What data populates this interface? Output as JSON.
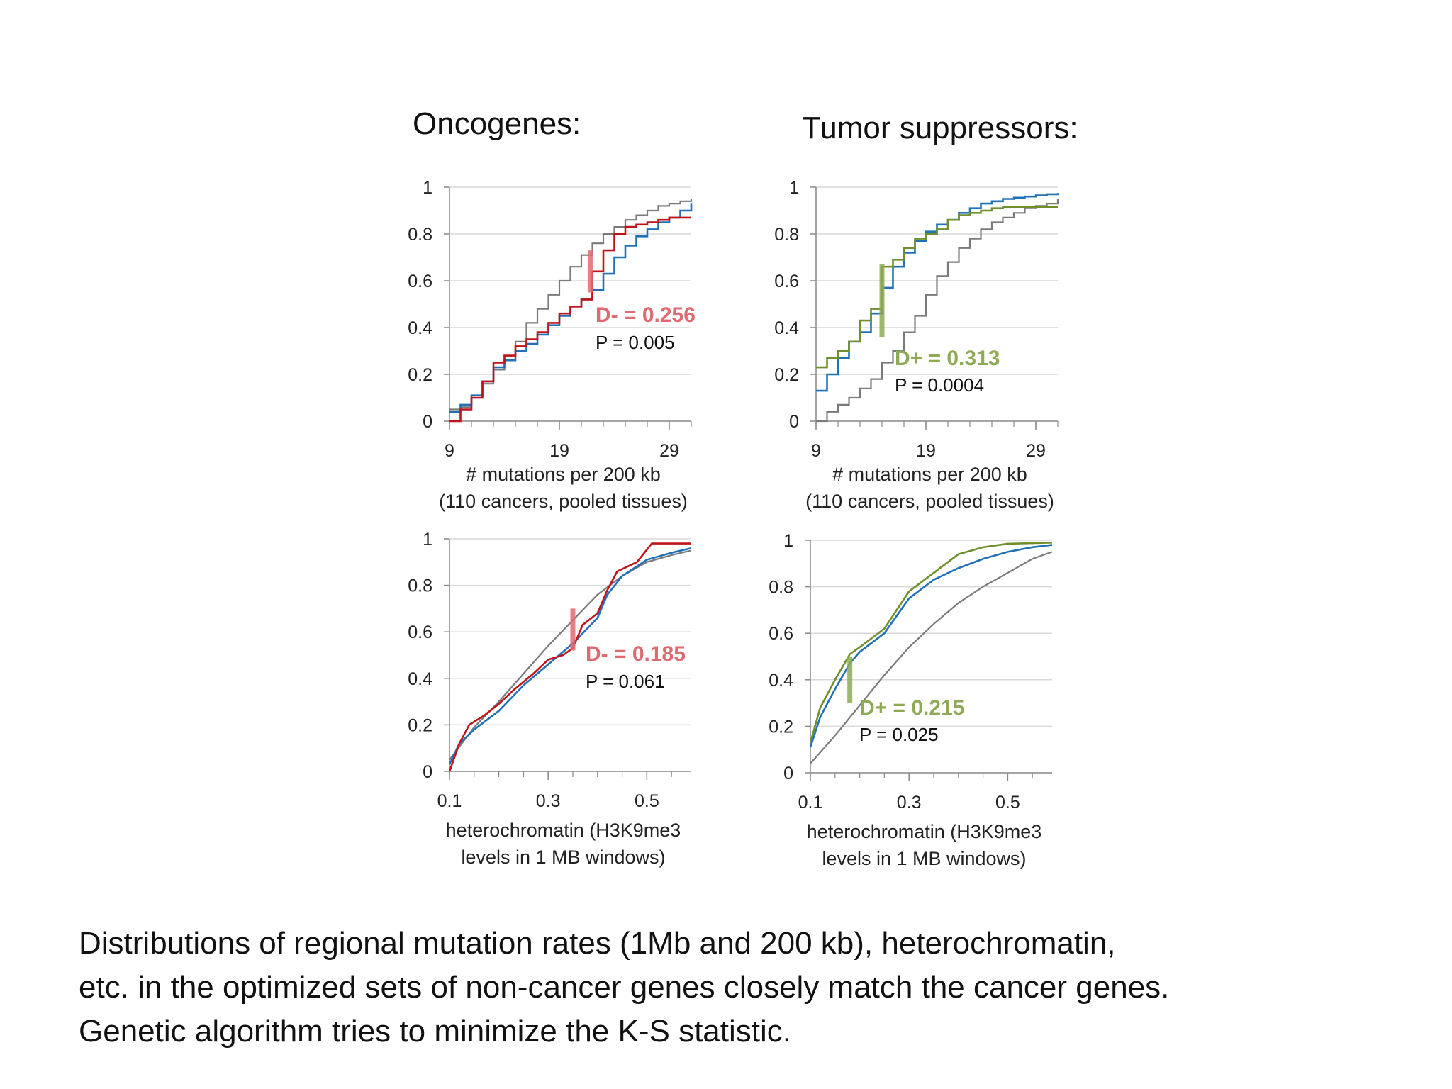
{
  "titles": {
    "oncogenes": "Oncogenes:",
    "tumor_suppressors": "Tumor suppressors:"
  },
  "caption": [
    "Distributions of regional mutation rates (1Mb and 200 kb), heterochromatin,",
    "etc. in the optimized sets of non-cancer genes closely match the cancer genes.",
    "Genetic algorithm tries to minimize the K-S statistic."
  ],
  "colors": {
    "cancer_onc": "#c0141c",
    "cancer_tum": "#6f8f2c",
    "optimized": "#1f72b8",
    "background": "#7a7a7a",
    "d_onc": "#e06a72",
    "d_tum": "#8faa55"
  },
  "chart_data": [
    {
      "id": "onc-mut",
      "type": "line",
      "step": true,
      "group": "Oncogenes:",
      "xlabel": [
        "# mutations per 200 kb",
        "(110 cancers, pooled tissues)"
      ],
      "ylabel": "",
      "xlim": [
        9,
        31
      ],
      "ylim": [
        0,
        1
      ],
      "xticks": [
        "9",
        "19",
        "29"
      ],
      "yticks": [
        "0",
        "0.2",
        "0.4",
        "0.6",
        "0.8",
        "1"
      ],
      "grid": true,
      "stat_label": "D- = 0.256",
      "p_label": "P = 0.005",
      "d_marker": {
        "x": 21.8,
        "y_low": 0.55,
        "y_high": 0.73
      },
      "series": [
        {
          "role": "background",
          "points": [
            [
              9,
              0.05
            ],
            [
              10,
              0.06
            ],
            [
              11,
              0.1
            ],
            [
              12,
              0.16
            ],
            [
              13,
              0.22
            ],
            [
              14,
              0.28
            ],
            [
              15,
              0.34
            ],
            [
              16,
              0.42
            ],
            [
              17,
              0.48
            ],
            [
              18,
              0.54
            ],
            [
              19,
              0.6
            ],
            [
              20,
              0.66
            ],
            [
              21,
              0.71
            ],
            [
              22,
              0.76
            ],
            [
              23,
              0.8
            ],
            [
              24,
              0.83
            ],
            [
              25,
              0.86
            ],
            [
              26,
              0.88
            ],
            [
              27,
              0.9
            ],
            [
              28,
              0.92
            ],
            [
              29,
              0.93
            ],
            [
              30,
              0.94
            ],
            [
              31,
              0.95
            ]
          ]
        },
        {
          "role": "optimized",
          "points": [
            [
              9,
              0.04
            ],
            [
              10,
              0.07
            ],
            [
              11,
              0.11
            ],
            [
              12,
              0.17
            ],
            [
              13,
              0.23
            ],
            [
              14,
              0.26
            ],
            [
              15,
              0.3
            ],
            [
              16,
              0.33
            ],
            [
              17,
              0.37
            ],
            [
              18,
              0.41
            ],
            [
              19,
              0.45
            ],
            [
              20,
              0.49
            ],
            [
              21,
              0.52
            ],
            [
              22,
              0.56
            ],
            [
              23,
              0.63
            ],
            [
              24,
              0.7
            ],
            [
              25,
              0.75
            ],
            [
              26,
              0.79
            ],
            [
              27,
              0.82
            ],
            [
              28,
              0.85
            ],
            [
              29,
              0.87
            ],
            [
              30,
              0.9
            ],
            [
              31,
              0.93
            ]
          ]
        },
        {
          "role": "cancer",
          "points": [
            [
              9,
              0.0
            ],
            [
              10,
              0.05
            ],
            [
              11,
              0.1
            ],
            [
              12,
              0.17
            ],
            [
              13,
              0.25
            ],
            [
              14,
              0.28
            ],
            [
              15,
              0.32
            ],
            [
              16,
              0.35
            ],
            [
              17,
              0.38
            ],
            [
              18,
              0.42
            ],
            [
              19,
              0.46
            ],
            [
              20,
              0.49
            ],
            [
              21,
              0.52
            ],
            [
              22,
              0.64
            ],
            [
              23,
              0.73
            ],
            [
              24,
              0.8
            ],
            [
              25,
              0.83
            ],
            [
              26,
              0.84
            ],
            [
              27,
              0.85
            ],
            [
              28,
              0.86
            ],
            [
              29,
              0.87
            ],
            [
              31,
              0.87
            ]
          ]
        }
      ]
    },
    {
      "id": "tum-mut",
      "type": "line",
      "step": true,
      "group": "Tumor suppressors:",
      "xlabel": [
        "# mutations per 200 kb",
        "(110 cancers, pooled tissues)"
      ],
      "ylabel": "",
      "xlim": [
        9,
        31
      ],
      "ylim": [
        0,
        1
      ],
      "xticks": [
        "9",
        "19",
        "29"
      ],
      "yticks": [
        "0",
        "0.2",
        "0.4",
        "0.6",
        "0.8",
        "1"
      ],
      "grid": true,
      "stat_label": "D+ = 0.313",
      "p_label": "P = 0.0004",
      "d_marker": {
        "x": 15.0,
        "y_low": 0.36,
        "y_high": 0.67
      },
      "series": [
        {
          "role": "background",
          "points": [
            [
              9,
              0.0
            ],
            [
              10,
              0.04
            ],
            [
              11,
              0.07
            ],
            [
              12,
              0.1
            ],
            [
              13,
              0.14
            ],
            [
              14,
              0.18
            ],
            [
              15,
              0.25
            ],
            [
              16,
              0.3
            ],
            [
              17,
              0.38
            ],
            [
              18,
              0.45
            ],
            [
              19,
              0.54
            ],
            [
              20,
              0.62
            ],
            [
              21,
              0.68
            ],
            [
              22,
              0.74
            ],
            [
              23,
              0.78
            ],
            [
              24,
              0.82
            ],
            [
              25,
              0.85
            ],
            [
              26,
              0.87
            ],
            [
              27,
              0.89
            ],
            [
              28,
              0.91
            ],
            [
              29,
              0.92
            ],
            [
              30,
              0.93
            ],
            [
              31,
              0.95
            ]
          ]
        },
        {
          "role": "optimized",
          "points": [
            [
              9,
              0.13
            ],
            [
              10,
              0.2
            ],
            [
              11,
              0.27
            ],
            [
              12,
              0.34
            ],
            [
              13,
              0.38
            ],
            [
              14,
              0.46
            ],
            [
              15,
              0.57
            ],
            [
              16,
              0.66
            ],
            [
              17,
              0.72
            ],
            [
              18,
              0.77
            ],
            [
              19,
              0.81
            ],
            [
              20,
              0.84
            ],
            [
              21,
              0.86
            ],
            [
              22,
              0.89
            ],
            [
              23,
              0.91
            ],
            [
              24,
              0.93
            ],
            [
              25,
              0.94
            ],
            [
              26,
              0.95
            ],
            [
              27,
              0.955
            ],
            [
              28,
              0.96
            ],
            [
              29,
              0.965
            ],
            [
              30,
              0.97
            ],
            [
              31,
              0.975
            ]
          ]
        },
        {
          "role": "cancer",
          "points": [
            [
              9,
              0.23
            ],
            [
              10,
              0.27
            ],
            [
              11,
              0.3
            ],
            [
              12,
              0.34
            ],
            [
              13,
              0.43
            ],
            [
              14,
              0.48
            ],
            [
              15,
              0.66
            ],
            [
              16,
              0.69
            ],
            [
              17,
              0.74
            ],
            [
              18,
              0.78
            ],
            [
              19,
              0.8
            ],
            [
              20,
              0.82
            ],
            [
              21,
              0.86
            ],
            [
              22,
              0.88
            ],
            [
              23,
              0.89
            ],
            [
              24,
              0.9
            ],
            [
              25,
              0.91
            ],
            [
              26,
              0.915
            ],
            [
              27,
              0.915
            ],
            [
              31,
              0.915
            ]
          ]
        }
      ]
    },
    {
      "id": "onc-het",
      "type": "line",
      "step": false,
      "group": "Oncogenes:",
      "xlabel": [
        "heterochromatin (H3K9me3",
        "levels in 1 MB windows)"
      ],
      "ylabel": "",
      "xlim": [
        0.1,
        0.59
      ],
      "ylim": [
        0,
        1
      ],
      "xticks": [
        "0.1",
        "0.3",
        "0.5"
      ],
      "yticks": [
        "0",
        "0.2",
        "0.4",
        "0.6",
        "0.8",
        "1"
      ],
      "grid": true,
      "stat_label": "D- = 0.185",
      "p_label": "P = 0.061",
      "d_marker": {
        "x": 0.35,
        "y_low": 0.52,
        "y_high": 0.7
      },
      "series": [
        {
          "role": "background",
          "points": [
            [
              0.1,
              0.05
            ],
            [
              0.15,
              0.19
            ],
            [
              0.2,
              0.3
            ],
            [
              0.25,
              0.42
            ],
            [
              0.3,
              0.54
            ],
            [
              0.35,
              0.65
            ],
            [
              0.4,
              0.76
            ],
            [
              0.45,
              0.84
            ],
            [
              0.5,
              0.9
            ],
            [
              0.55,
              0.93
            ],
            [
              0.59,
              0.95
            ]
          ]
        },
        {
          "role": "optimized",
          "points": [
            [
              0.1,
              0.03
            ],
            [
              0.12,
              0.12
            ],
            [
              0.15,
              0.18
            ],
            [
              0.2,
              0.26
            ],
            [
              0.25,
              0.37
            ],
            [
              0.3,
              0.46
            ],
            [
              0.35,
              0.55
            ],
            [
              0.4,
              0.66
            ],
            [
              0.42,
              0.76
            ],
            [
              0.45,
              0.84
            ],
            [
              0.5,
              0.91
            ],
            [
              0.55,
              0.94
            ],
            [
              0.59,
              0.96
            ]
          ]
        },
        {
          "role": "cancer",
          "points": [
            [
              0.1,
              0.0
            ],
            [
              0.12,
              0.12
            ],
            [
              0.14,
              0.2
            ],
            [
              0.17,
              0.24
            ],
            [
              0.2,
              0.29
            ],
            [
              0.23,
              0.35
            ],
            [
              0.27,
              0.42
            ],
            [
              0.3,
              0.48
            ],
            [
              0.33,
              0.5
            ],
            [
              0.35,
              0.53
            ],
            [
              0.37,
              0.63
            ],
            [
              0.4,
              0.68
            ],
            [
              0.42,
              0.78
            ],
            [
              0.44,
              0.86
            ],
            [
              0.48,
              0.9
            ],
            [
              0.51,
              0.98
            ],
            [
              0.59,
              0.98
            ]
          ]
        }
      ]
    },
    {
      "id": "tum-het",
      "type": "line",
      "step": false,
      "group": "Tumor suppressors:",
      "xlabel": [
        "heterochromatin (H3K9me3",
        "levels in 1 MB windows)"
      ],
      "ylabel": "",
      "xlim": [
        0.1,
        0.59
      ],
      "ylim": [
        0,
        1
      ],
      "xticks": [
        "0.1",
        "0.3",
        "0.5"
      ],
      "yticks": [
        "0",
        "0.2",
        "0.4",
        "0.6",
        "0.8",
        "1"
      ],
      "grid": true,
      "stat_label": "D+ = 0.215",
      "p_label": "P = 0.025",
      "d_marker": {
        "x": 0.18,
        "y_low": 0.3,
        "y_high": 0.5
      },
      "series": [
        {
          "role": "background",
          "points": [
            [
              0.1,
              0.04
            ],
            [
              0.15,
              0.16
            ],
            [
              0.2,
              0.29
            ],
            [
              0.25,
              0.42
            ],
            [
              0.3,
              0.54
            ],
            [
              0.35,
              0.64
            ],
            [
              0.4,
              0.73
            ],
            [
              0.45,
              0.8
            ],
            [
              0.5,
              0.86
            ],
            [
              0.55,
              0.92
            ],
            [
              0.59,
              0.95
            ]
          ]
        },
        {
          "role": "optimized",
          "points": [
            [
              0.1,
              0.11
            ],
            [
              0.12,
              0.24
            ],
            [
              0.15,
              0.36
            ],
            [
              0.18,
              0.47
            ],
            [
              0.2,
              0.52
            ],
            [
              0.25,
              0.6
            ],
            [
              0.3,
              0.75
            ],
            [
              0.35,
              0.83
            ],
            [
              0.4,
              0.88
            ],
            [
              0.45,
              0.92
            ],
            [
              0.5,
              0.95
            ],
            [
              0.55,
              0.97
            ],
            [
              0.59,
              0.98
            ]
          ]
        },
        {
          "role": "cancer",
          "points": [
            [
              0.1,
              0.13
            ],
            [
              0.12,
              0.28
            ],
            [
              0.15,
              0.4
            ],
            [
              0.18,
              0.51
            ],
            [
              0.2,
              0.54
            ],
            [
              0.25,
              0.62
            ],
            [
              0.3,
              0.78
            ],
            [
              0.35,
              0.86
            ],
            [
              0.4,
              0.94
            ],
            [
              0.45,
              0.97
            ],
            [
              0.5,
              0.985
            ],
            [
              0.59,
              0.99
            ]
          ]
        }
      ]
    }
  ]
}
